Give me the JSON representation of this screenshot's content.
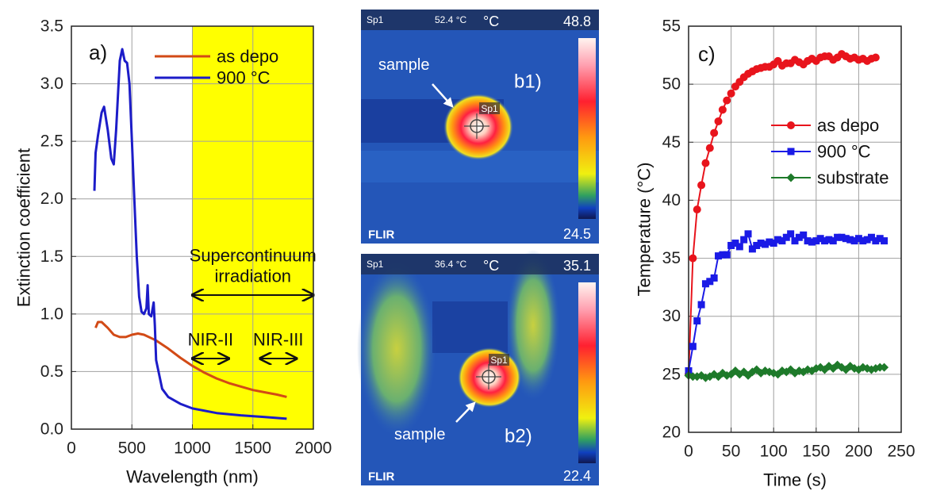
{
  "chart_data": [
    {
      "type": "line",
      "panel_label": "a)",
      "x_label": "Wavelength (nm)",
      "y_label": "Extinction coefficient",
      "xlim": [
        0,
        2000
      ],
      "xticks": [
        0,
        500,
        1000,
        1500,
        2000
      ],
      "ylim": [
        0,
        3.5
      ],
      "yticks": [
        {
          "value": 0,
          "label": "0.0"
        },
        0.5,
        {
          "value": 1,
          "label": "1.0"
        },
        1.5,
        {
          "value": 2,
          "label": "2.0"
        },
        2.5,
        {
          "value": 3,
          "label": "3.0"
        },
        3.5
      ],
      "grid": true,
      "legend": "upper right",
      "shaded_span": {
        "range": [
          1000,
          2000
        ],
        "color": "#ffff00"
      },
      "arrows": [
        {
          "label_lines": [
            "Supercontinuum",
            "irradiation"
          ],
          "range": [
            1000,
            2000
          ]
        },
        {
          "label_lines": [
            "NIR-II"
          ],
          "range": [
            1000,
            1300
          ]
        },
        {
          "label_lines": [
            "NIR-III"
          ],
          "range": [
            1560,
            1860
          ]
        }
      ],
      "series": [
        {
          "name": "as depo",
          "color": "#d24a16",
          "x": [
            200,
            220,
            250,
            300,
            350,
            400,
            450,
            500,
            550,
            600,
            700,
            800,
            900,
            1000,
            1100,
            1200,
            1300,
            1400,
            1500,
            1600,
            1700,
            1780
          ],
          "values": [
            0.88,
            0.93,
            0.93,
            0.88,
            0.82,
            0.8,
            0.8,
            0.82,
            0.83,
            0.82,
            0.77,
            0.7,
            0.62,
            0.55,
            0.49,
            0.44,
            0.4,
            0.37,
            0.34,
            0.32,
            0.3,
            0.28
          ]
        },
        {
          "name": "900 °C",
          "color": "#1c1cc8",
          "x": [
            190,
            200,
            220,
            250,
            270,
            300,
            330,
            350,
            370,
            400,
            420,
            440,
            460,
            480,
            500,
            520,
            540,
            560,
            580,
            600,
            620,
            630,
            640,
            660,
            680,
            690,
            700,
            750,
            800,
            900,
            1000,
            1200,
            1400,
            1600,
            1780
          ],
          "values": [
            2.07,
            2.4,
            2.55,
            2.75,
            2.8,
            2.6,
            2.35,
            2.3,
            2.6,
            3.2,
            3.3,
            3.2,
            3.18,
            3.0,
            2.5,
            2.0,
            1.5,
            1.15,
            1.02,
            1.0,
            1.05,
            1.25,
            1.0,
            0.98,
            1.1,
            0.9,
            0.6,
            0.35,
            0.28,
            0.22,
            0.18,
            0.14,
            0.12,
            0.105,
            0.09
          ]
        }
      ]
    },
    {
      "type": "line",
      "panel_label": "c)",
      "x_label": "Time (s)",
      "y_label": "Temperature (°C)",
      "xlim": [
        0,
        250
      ],
      "xticks": [
        0,
        50,
        100,
        150,
        200,
        250
      ],
      "ylim": [
        20,
        55
      ],
      "yticks": [
        20,
        25,
        30,
        35,
        40,
        45,
        50,
        55
      ],
      "grid": true,
      "legend": "center right",
      "series": [
        {
          "name": "as depo",
          "color": "#e8141c",
          "marker": "circle",
          "x": [
            0,
            5,
            10,
            15,
            20,
            25,
            30,
            35,
            40,
            45,
            50,
            55,
            60,
            65,
            70,
            75,
            80,
            85,
            90,
            95,
            100,
            105,
            110,
            115,
            120,
            125,
            130,
            135,
            140,
            145,
            150,
            155,
            160,
            165,
            170,
            175,
            180,
            185,
            190,
            195,
            200,
            205,
            210,
            215,
            220
          ],
          "values": [
            25,
            35,
            39.2,
            41.3,
            43.2,
            44.5,
            45.8,
            46.8,
            47.8,
            48.6,
            49.2,
            49.8,
            50.2,
            50.6,
            50.9,
            51.1,
            51.3,
            51.4,
            51.5,
            51.5,
            51.7,
            52,
            51.6,
            51.8,
            51.8,
            52.1,
            51.9,
            51.7,
            52,
            52.2,
            52,
            52.3,
            52.4,
            52.4,
            52.1,
            52.3,
            52.6,
            52.4,
            52.2,
            52.3,
            52.1,
            52.2,
            52,
            52.2,
            52.3
          ]
        },
        {
          "name": "900 °C",
          "color": "#1a1ae6",
          "marker": "square",
          "x": [
            0,
            5,
            10,
            15,
            20,
            25,
            30,
            35,
            40,
            45,
            50,
            55,
            60,
            65,
            70,
            75,
            80,
            85,
            90,
            95,
            100,
            105,
            110,
            115,
            120,
            125,
            130,
            135,
            140,
            145,
            150,
            155,
            160,
            165,
            170,
            175,
            180,
            185,
            190,
            195,
            200,
            205,
            210,
            215,
            220,
            225,
            230
          ],
          "values": [
            25.3,
            27.4,
            29.6,
            31,
            32.8,
            33,
            33.3,
            35.2,
            35.3,
            35.3,
            36.1,
            36.3,
            36,
            36.6,
            37.1,
            35.8,
            36.1,
            36.3,
            36.2,
            36.4,
            36.3,
            36.6,
            36.5,
            36.8,
            37.1,
            36.5,
            36.8,
            37,
            36.5,
            36.4,
            36.5,
            36.7,
            36.5,
            36.6,
            36.5,
            36.8,
            36.8,
            36.7,
            36.6,
            36.5,
            36.7,
            36.5,
            36.6,
            36.8,
            36.5,
            36.7,
            36.5
          ]
        },
        {
          "name": "substrate",
          "color": "#1e7a2a",
          "marker": "diamond",
          "x": [
            0,
            5,
            10,
            15,
            20,
            25,
            30,
            35,
            40,
            45,
            50,
            55,
            60,
            65,
            70,
            75,
            80,
            85,
            90,
            95,
            100,
            105,
            110,
            115,
            120,
            125,
            130,
            135,
            140,
            145,
            150,
            155,
            160,
            165,
            170,
            175,
            180,
            185,
            190,
            195,
            200,
            205,
            210,
            215,
            220,
            225,
            230
          ],
          "values": [
            24.9,
            24.8,
            24.8,
            24.9,
            24.7,
            24.8,
            25,
            24.8,
            25.1,
            24.9,
            25,
            25.3,
            25,
            25.2,
            24.9,
            25.2,
            25.4,
            25.1,
            25.3,
            25.2,
            25.1,
            25,
            25.3,
            25.2,
            25.4,
            25.1,
            25.3,
            25.2,
            25.4,
            25.3,
            25.5,
            25.6,
            25.4,
            25.7,
            25.5,
            25.8,
            25.6,
            25.4,
            25.7,
            25.5,
            25.4,
            25.6,
            25.5,
            25.4,
            25.5,
            25.6,
            25.6
          ]
        }
      ]
    }
  ],
  "thermal_images": [
    {
      "panel_label": "b1)",
      "spot_name": "Sp1",
      "spot_temperature": "52.4 °C",
      "unit": "°C",
      "scale_max": 48.8,
      "scale_min": 24.5,
      "sample_label": "sample",
      "spot_marker_label": "Sp1",
      "brand": "FLIR"
    },
    {
      "panel_label": "b2)",
      "spot_name": "Sp1",
      "spot_temperature": "36.4 °C",
      "unit": "°C",
      "scale_max": 35.1,
      "scale_min": 22.4,
      "sample_label": "sample",
      "spot_marker_label": "Sp1",
      "brand": "FLIR"
    }
  ]
}
